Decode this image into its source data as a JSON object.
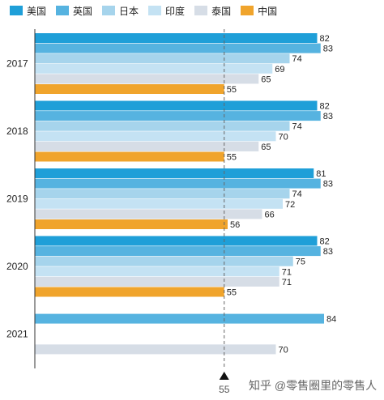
{
  "chart_data": {
    "type": "bar",
    "orientation": "horizontal",
    "categories": [
      "2017",
      "2018",
      "2019",
      "2020",
      "2021"
    ],
    "series": [
      {
        "name": "美国",
        "color": "#1f9fd8",
        "values": [
          82,
          82,
          81,
          82,
          null
        ]
      },
      {
        "name": "英国",
        "color": "#56b3e0",
        "values": [
          83,
          83,
          83,
          83,
          84
        ]
      },
      {
        "name": "日本",
        "color": "#a6d4ec",
        "values": [
          74,
          74,
          74,
          75,
          null
        ]
      },
      {
        "name": "印度",
        "color": "#c4e2f3",
        "values": [
          69,
          70,
          72,
          71,
          null
        ]
      },
      {
        "name": "泰国",
        "color": "#d6dde6",
        "values": [
          65,
          65,
          66,
          71,
          70
        ]
      },
      {
        "name": "中国",
        "color": "#f0a42c",
        "values": [
          55,
          55,
          56,
          55,
          null
        ]
      }
    ],
    "reference_line": {
      "value": 55,
      "label": "55",
      "style": "dashed"
    },
    "xlim": [
      0,
      85
    ],
    "legend_position": "top-left",
    "grid": false
  },
  "watermark": {
    "text": "知乎 @零售圈里的零售人"
  }
}
